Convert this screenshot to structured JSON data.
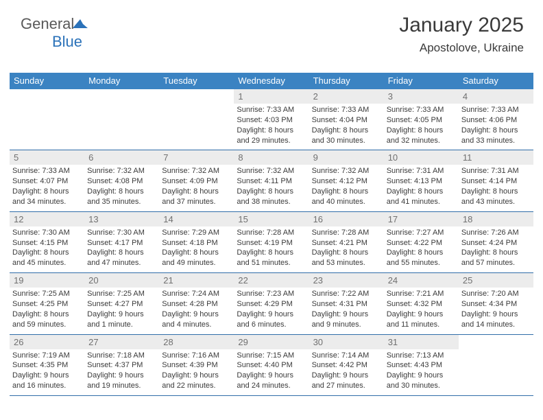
{
  "logo": {
    "text_a": "General",
    "text_b": "Blue"
  },
  "title": "January 2025",
  "location": "Apostolove, Ukraine",
  "colors": {
    "header_bg": "#3b83c2",
    "header_fg": "#ffffff",
    "daynum_bg": "#ececec",
    "daynum_fg": "#707070",
    "rule": "#2f6ca8",
    "text": "#3a3a3a"
  },
  "weekdays": [
    "Sunday",
    "Monday",
    "Tuesday",
    "Wednesday",
    "Thursday",
    "Friday",
    "Saturday"
  ],
  "weeks": [
    [
      {
        "n": "",
        "lines": []
      },
      {
        "n": "",
        "lines": []
      },
      {
        "n": "",
        "lines": []
      },
      {
        "n": "1",
        "lines": [
          "Sunrise: 7:33 AM",
          "Sunset: 4:03 PM",
          "Daylight: 8 hours",
          "and 29 minutes."
        ]
      },
      {
        "n": "2",
        "lines": [
          "Sunrise: 7:33 AM",
          "Sunset: 4:04 PM",
          "Daylight: 8 hours",
          "and 30 minutes."
        ]
      },
      {
        "n": "3",
        "lines": [
          "Sunrise: 7:33 AM",
          "Sunset: 4:05 PM",
          "Daylight: 8 hours",
          "and 32 minutes."
        ]
      },
      {
        "n": "4",
        "lines": [
          "Sunrise: 7:33 AM",
          "Sunset: 4:06 PM",
          "Daylight: 8 hours",
          "and 33 minutes."
        ]
      }
    ],
    [
      {
        "n": "5",
        "lines": [
          "Sunrise: 7:33 AM",
          "Sunset: 4:07 PM",
          "Daylight: 8 hours",
          "and 34 minutes."
        ]
      },
      {
        "n": "6",
        "lines": [
          "Sunrise: 7:32 AM",
          "Sunset: 4:08 PM",
          "Daylight: 8 hours",
          "and 35 minutes."
        ]
      },
      {
        "n": "7",
        "lines": [
          "Sunrise: 7:32 AM",
          "Sunset: 4:09 PM",
          "Daylight: 8 hours",
          "and 37 minutes."
        ]
      },
      {
        "n": "8",
        "lines": [
          "Sunrise: 7:32 AM",
          "Sunset: 4:11 PM",
          "Daylight: 8 hours",
          "and 38 minutes."
        ]
      },
      {
        "n": "9",
        "lines": [
          "Sunrise: 7:32 AM",
          "Sunset: 4:12 PM",
          "Daylight: 8 hours",
          "and 40 minutes."
        ]
      },
      {
        "n": "10",
        "lines": [
          "Sunrise: 7:31 AM",
          "Sunset: 4:13 PM",
          "Daylight: 8 hours",
          "and 41 minutes."
        ]
      },
      {
        "n": "11",
        "lines": [
          "Sunrise: 7:31 AM",
          "Sunset: 4:14 PM",
          "Daylight: 8 hours",
          "and 43 minutes."
        ]
      }
    ],
    [
      {
        "n": "12",
        "lines": [
          "Sunrise: 7:30 AM",
          "Sunset: 4:15 PM",
          "Daylight: 8 hours",
          "and 45 minutes."
        ]
      },
      {
        "n": "13",
        "lines": [
          "Sunrise: 7:30 AM",
          "Sunset: 4:17 PM",
          "Daylight: 8 hours",
          "and 47 minutes."
        ]
      },
      {
        "n": "14",
        "lines": [
          "Sunrise: 7:29 AM",
          "Sunset: 4:18 PM",
          "Daylight: 8 hours",
          "and 49 minutes."
        ]
      },
      {
        "n": "15",
        "lines": [
          "Sunrise: 7:28 AM",
          "Sunset: 4:19 PM",
          "Daylight: 8 hours",
          "and 51 minutes."
        ]
      },
      {
        "n": "16",
        "lines": [
          "Sunrise: 7:28 AM",
          "Sunset: 4:21 PM",
          "Daylight: 8 hours",
          "and 53 minutes."
        ]
      },
      {
        "n": "17",
        "lines": [
          "Sunrise: 7:27 AM",
          "Sunset: 4:22 PM",
          "Daylight: 8 hours",
          "and 55 minutes."
        ]
      },
      {
        "n": "18",
        "lines": [
          "Sunrise: 7:26 AM",
          "Sunset: 4:24 PM",
          "Daylight: 8 hours",
          "and 57 minutes."
        ]
      }
    ],
    [
      {
        "n": "19",
        "lines": [
          "Sunrise: 7:25 AM",
          "Sunset: 4:25 PM",
          "Daylight: 8 hours",
          "and 59 minutes."
        ]
      },
      {
        "n": "20",
        "lines": [
          "Sunrise: 7:25 AM",
          "Sunset: 4:27 PM",
          "Daylight: 9 hours",
          "and 1 minute."
        ]
      },
      {
        "n": "21",
        "lines": [
          "Sunrise: 7:24 AM",
          "Sunset: 4:28 PM",
          "Daylight: 9 hours",
          "and 4 minutes."
        ]
      },
      {
        "n": "22",
        "lines": [
          "Sunrise: 7:23 AM",
          "Sunset: 4:29 PM",
          "Daylight: 9 hours",
          "and 6 minutes."
        ]
      },
      {
        "n": "23",
        "lines": [
          "Sunrise: 7:22 AM",
          "Sunset: 4:31 PM",
          "Daylight: 9 hours",
          "and 9 minutes."
        ]
      },
      {
        "n": "24",
        "lines": [
          "Sunrise: 7:21 AM",
          "Sunset: 4:32 PM",
          "Daylight: 9 hours",
          "and 11 minutes."
        ]
      },
      {
        "n": "25",
        "lines": [
          "Sunrise: 7:20 AM",
          "Sunset: 4:34 PM",
          "Daylight: 9 hours",
          "and 14 minutes."
        ]
      }
    ],
    [
      {
        "n": "26",
        "lines": [
          "Sunrise: 7:19 AM",
          "Sunset: 4:35 PM",
          "Daylight: 9 hours",
          "and 16 minutes."
        ]
      },
      {
        "n": "27",
        "lines": [
          "Sunrise: 7:18 AM",
          "Sunset: 4:37 PM",
          "Daylight: 9 hours",
          "and 19 minutes."
        ]
      },
      {
        "n": "28",
        "lines": [
          "Sunrise: 7:16 AM",
          "Sunset: 4:39 PM",
          "Daylight: 9 hours",
          "and 22 minutes."
        ]
      },
      {
        "n": "29",
        "lines": [
          "Sunrise: 7:15 AM",
          "Sunset: 4:40 PM",
          "Daylight: 9 hours",
          "and 24 minutes."
        ]
      },
      {
        "n": "30",
        "lines": [
          "Sunrise: 7:14 AM",
          "Sunset: 4:42 PM",
          "Daylight: 9 hours",
          "and 27 minutes."
        ]
      },
      {
        "n": "31",
        "lines": [
          "Sunrise: 7:13 AM",
          "Sunset: 4:43 PM",
          "Daylight: 9 hours",
          "and 30 minutes."
        ]
      },
      {
        "n": "",
        "lines": []
      }
    ]
  ]
}
